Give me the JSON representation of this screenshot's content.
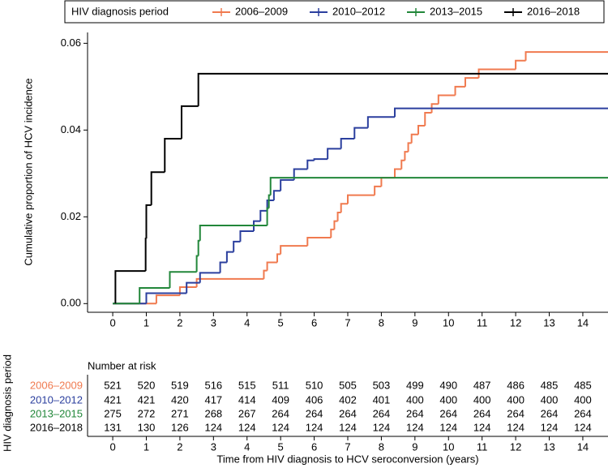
{
  "chart_data": {
    "type": "step",
    "ylabel": "Cumulative proportion of HCV incidence",
    "xlabel": "Time from HIV diagnosis to HCV seroconversion (years)",
    "legend_title": "HIV diagnosis period",
    "legend": "top",
    "xlim": [
      -0.75,
      14.75
    ],
    "ylim": [
      -0.002,
      0.0625
    ],
    "xticks": [
      0,
      1,
      2,
      3,
      4,
      5,
      6,
      7,
      8,
      9,
      10,
      11,
      12,
      13,
      14
    ],
    "yticks": [
      {
        "value": 0,
        "label": "0.00"
      },
      {
        "value": 0.02,
        "label": "0.02"
      },
      {
        "value": 0.04,
        "label": "0.04"
      },
      {
        "value": 0.06,
        "label": "0.06"
      }
    ],
    "series": [
      {
        "name": "2006–2009",
        "color": "#f07a4f",
        "x": [
          0,
          1.3,
          2.0,
          2.5,
          4.5,
          4.6,
          4.9,
          5.0,
          5.8,
          6.5,
          6.6,
          6.7,
          6.8,
          7.0,
          7.8,
          8.0,
          8.4,
          8.6,
          8.7,
          8.8,
          8.9,
          9.1,
          9.3,
          9.5,
          9.7,
          10.2,
          10.5,
          10.9,
          12.0,
          12.3,
          14.75
        ],
        "values": [
          0,
          0.0019,
          0.0038,
          0.0057,
          0.0076,
          0.0095,
          0.0114,
          0.0133,
          0.0152,
          0.0171,
          0.019,
          0.021,
          0.023,
          0.025,
          0.027,
          0.029,
          0.031,
          0.033,
          0.035,
          0.037,
          0.039,
          0.041,
          0.044,
          0.046,
          0.048,
          0.05,
          0.052,
          0.054,
          0.056,
          0.058,
          0.058
        ]
      },
      {
        "name": "2010–2012",
        "color": "#2b3f9e",
        "x": [
          0,
          1.0,
          2.2,
          2.6,
          3.2,
          3.4,
          3.6,
          3.8,
          4.2,
          4.4,
          4.6,
          4.8,
          5.0,
          5.4,
          5.8,
          6.0,
          6.4,
          6.8,
          7.2,
          7.6,
          8.4,
          14.75
        ],
        "values": [
          0,
          0.0024,
          0.0048,
          0.0071,
          0.0095,
          0.0119,
          0.0143,
          0.0167,
          0.019,
          0.0214,
          0.0238,
          0.026,
          0.0285,
          0.031,
          0.033,
          0.0333,
          0.0357,
          0.038,
          0.0405,
          0.043,
          0.045,
          0.045
        ]
      },
      {
        "name": "2013–2015",
        "color": "#22873a",
        "x": [
          0,
          0.8,
          1.7,
          2.5,
          2.55,
          2.6,
          4.6,
          4.65,
          4.7,
          14.75
        ],
        "values": [
          0,
          0.0036,
          0.0073,
          0.011,
          0.0145,
          0.018,
          0.022,
          0.025,
          0.029,
          0.029
        ]
      },
      {
        "name": "2016–2018",
        "color": "#000000",
        "x": [
          0.08,
          0.08,
          0.98,
          1.0,
          1.15,
          1.55,
          2.05,
          2.55,
          14.75
        ],
        "values": [
          0,
          0.0075,
          0.015,
          0.0227,
          0.0303,
          0.038,
          0.0455,
          0.053,
          0.053
        ]
      }
    ],
    "risk_table": {
      "title": "Number at risk",
      "ylabel": "HIV diagnosis period",
      "rows": [
        {
          "name": "2006–2009",
          "color": "#f07a4f",
          "values": [
            521,
            520,
            519,
            516,
            515,
            511,
            510,
            505,
            503,
            499,
            490,
            487,
            486,
            485,
            485
          ]
        },
        {
          "name": "2010–2012",
          "color": "#2b3f9e",
          "values": [
            421,
            421,
            420,
            417,
            414,
            409,
            406,
            402,
            401,
            400,
            400,
            400,
            400,
            400,
            400
          ]
        },
        {
          "name": "2013–2015",
          "color": "#22873a",
          "values": [
            275,
            272,
            271,
            268,
            267,
            264,
            264,
            264,
            264,
            264,
            264,
            264,
            264,
            264,
            264
          ]
        },
        {
          "name": "2016–2018",
          "color": "#000000",
          "values": [
            131,
            130,
            126,
            124,
            124,
            124,
            124,
            124,
            124,
            124,
            124,
            124,
            124,
            124,
            124
          ]
        }
      ]
    }
  }
}
